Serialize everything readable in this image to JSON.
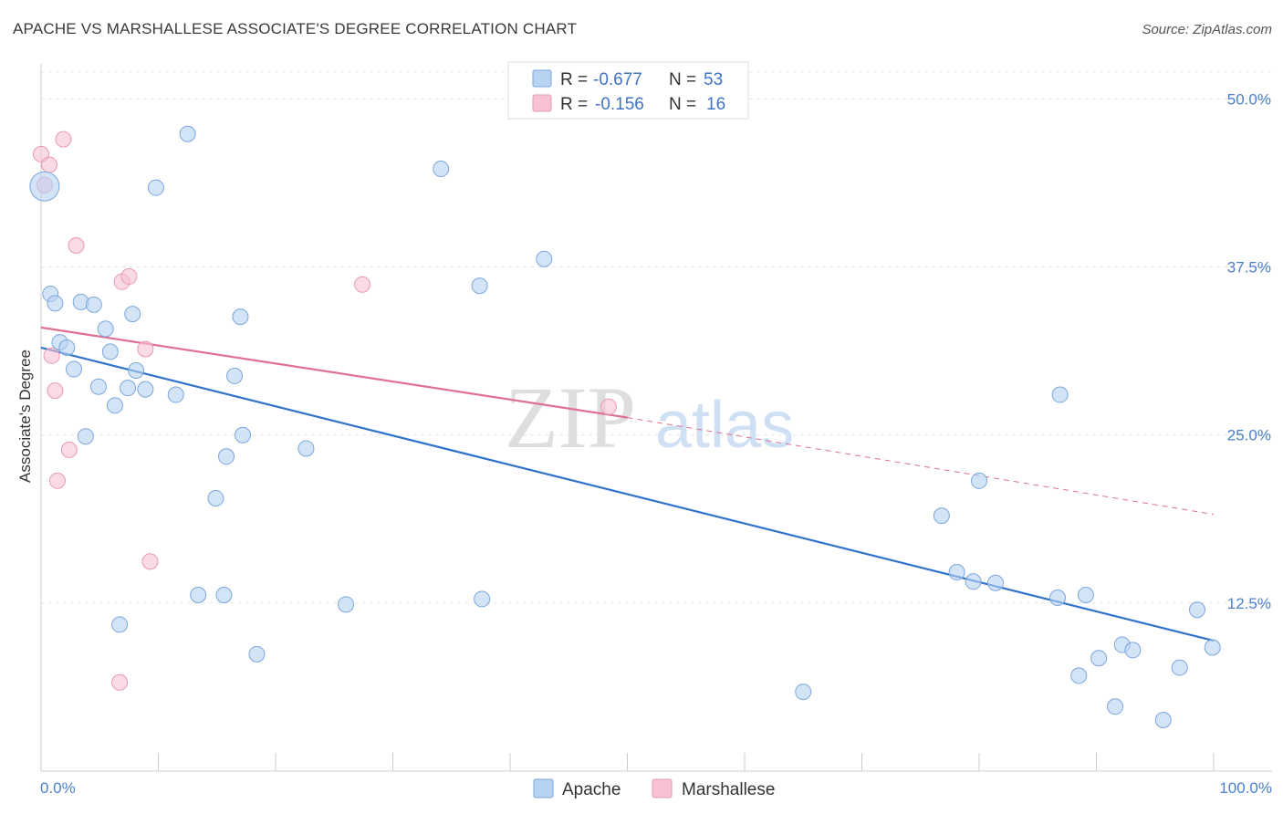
{
  "header": {
    "title": "APACHE VS MARSHALLESE ASSOCIATE'S DEGREE CORRELATION CHART",
    "source": "Source: ZipAtlas.com"
  },
  "watermark": {
    "zip": "ZIP",
    "atlas": "atlas"
  },
  "stats": [
    {
      "r_label": "R =",
      "r_value": "-0.677",
      "n_label": "N =",
      "n_value": "53"
    },
    {
      "r_label": "R =",
      "r_value": "-0.156",
      "n_label": "N =",
      "n_value": "16"
    }
  ],
  "chart_data": {
    "type": "scatter",
    "title": "APACHE VS MARSHALLESE ASSOCIATE'S DEGREE CORRELATION CHART",
    "xlabel": "",
    "ylabel": "Associate's Degree",
    "xlim": [
      0,
      100
    ],
    "ylim": [
      0,
      52
    ],
    "x_tick_labels": [
      "0.0%",
      "100.0%"
    ],
    "y_ticks": [
      12.5,
      25.0,
      37.5,
      50.0
    ],
    "y_tick_labels": [
      "12.5%",
      "25.0%",
      "37.5%",
      "50.0%"
    ],
    "grid": true,
    "colors": {
      "apache_fill": "#b8d2f1",
      "apache_stroke": "#7ba6dc",
      "apache_line": "#2f73cc",
      "marsh_fill": "#f7c2d2",
      "marsh_stroke": "#e99ab3",
      "marsh_line": "#e0708f"
    },
    "series": [
      {
        "name": "Apache",
        "points": [
          [
            0.3,
            43.5
          ],
          [
            0.8,
            35.5
          ],
          [
            1.2,
            34.8
          ],
          [
            1.6,
            31.9
          ],
          [
            2.2,
            31.5
          ],
          [
            2.8,
            29.9
          ],
          [
            3.4,
            34.9
          ],
          [
            3.8,
            24.9
          ],
          [
            4.5,
            34.7
          ],
          [
            4.9,
            28.6
          ],
          [
            5.5,
            32.9
          ],
          [
            5.9,
            31.2
          ],
          [
            6.3,
            27.2
          ],
          [
            6.7,
            10.9
          ],
          [
            7.4,
            28.5
          ],
          [
            7.8,
            34.0
          ],
          [
            8.1,
            29.8
          ],
          [
            8.9,
            28.4
          ],
          [
            9.8,
            43.4
          ],
          [
            11.5,
            28.0
          ],
          [
            12.5,
            47.4
          ],
          [
            13.4,
            13.1
          ],
          [
            14.9,
            20.3
          ],
          [
            15.6,
            13.1
          ],
          [
            15.8,
            23.4
          ],
          [
            16.5,
            29.4
          ],
          [
            17.0,
            33.8
          ],
          [
            17.2,
            25.0
          ],
          [
            18.4,
            8.7
          ],
          [
            22.6,
            24.0
          ],
          [
            26.0,
            12.4
          ],
          [
            34.1,
            44.8
          ],
          [
            37.4,
            36.1
          ],
          [
            37.6,
            12.8
          ],
          [
            42.9,
            38.1
          ],
          [
            65.0,
            5.9
          ],
          [
            76.8,
            19.0
          ],
          [
            78.1,
            14.8
          ],
          [
            79.5,
            14.1
          ],
          [
            80.0,
            21.6
          ],
          [
            81.4,
            14.0
          ],
          [
            86.7,
            12.9
          ],
          [
            86.9,
            28.0
          ],
          [
            88.5,
            7.1
          ],
          [
            89.1,
            13.1
          ],
          [
            90.2,
            8.4
          ],
          [
            91.6,
            4.8
          ],
          [
            92.2,
            9.4
          ],
          [
            93.1,
            9.0
          ],
          [
            95.7,
            3.8
          ],
          [
            97.1,
            7.7
          ],
          [
            98.6,
            12.0
          ],
          [
            99.9,
            9.2
          ]
        ],
        "trend": {
          "x": [
            0,
            100
          ],
          "y": [
            31.5,
            9.7
          ]
        }
      },
      {
        "name": "Marshallese",
        "points": [
          [
            0.0,
            45.9
          ],
          [
            0.3,
            43.6
          ],
          [
            0.7,
            45.1
          ],
          [
            0.9,
            30.9
          ],
          [
            1.2,
            28.3
          ],
          [
            1.4,
            21.6
          ],
          [
            1.9,
            47.0
          ],
          [
            2.4,
            23.9
          ],
          [
            3.0,
            39.1
          ],
          [
            6.7,
            6.6
          ],
          [
            6.9,
            36.4
          ],
          [
            7.5,
            36.8
          ],
          [
            8.9,
            31.4
          ],
          [
            9.3,
            15.6
          ],
          [
            27.4,
            36.2
          ],
          [
            48.4,
            27.1
          ]
        ],
        "trend": {
          "x": [
            0,
            50
          ],
          "y": [
            33.0,
            26.3
          ]
        },
        "trend_dashed": {
          "x": [
            50,
            100
          ],
          "y": [
            26.3,
            19.1
          ]
        }
      }
    ],
    "legend": [
      "Apache",
      "Marshallese"
    ]
  }
}
